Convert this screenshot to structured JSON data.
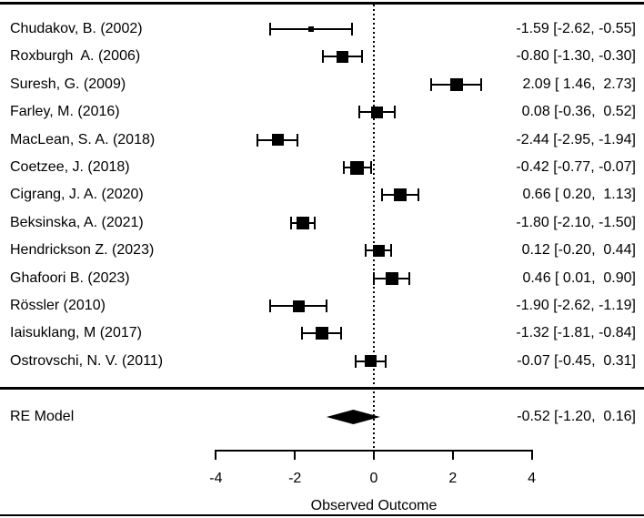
{
  "chart_data": {
    "type": "forest",
    "title": "",
    "xlabel": "Observed Outcome",
    "x_ticks": [
      -4,
      -2,
      0,
      2,
      4
    ],
    "xlim": [
      -4,
      4
    ],
    "reference_line": 0,
    "grid": false,
    "legend": false,
    "colors": {
      "foreground": "#000000",
      "background": "#ffffff"
    },
    "studies": [
      {
        "label": "Chudakov, B. (2002)",
        "estimate": -1.59,
        "ci_low": -2.62,
        "ci_high": -0.55,
        "display": "-1.59 [-2.62, -0.55]",
        "marker_size": 6
      },
      {
        "label": "Roxburgh  A. (2006)",
        "estimate": -0.8,
        "ci_low": -1.3,
        "ci_high": -0.3,
        "display": "-0.80 [-1.30, -0.30]",
        "marker_size": 13
      },
      {
        "label": "Suresh, G. (2009)",
        "estimate": 2.09,
        "ci_low": 1.46,
        "ci_high": 2.73,
        "display": "2.09 [ 1.46,  2.73]",
        "marker_size": 14
      },
      {
        "label": "Farley, M. (2016)",
        "estimate": 0.08,
        "ci_low": -0.36,
        "ci_high": 0.52,
        "display": "0.08 [-0.36,  0.52]",
        "marker_size": 13
      },
      {
        "label": "MacLean, S. A. (2018)",
        "estimate": -2.44,
        "ci_low": -2.95,
        "ci_high": -1.94,
        "display": "-2.44 [-2.95, -1.94]",
        "marker_size": 13
      },
      {
        "label": "Coetzee, J. (2018)",
        "estimate": -0.42,
        "ci_low": -0.77,
        "ci_high": -0.07,
        "display": "-0.42 [-0.77, -0.07]",
        "marker_size": 15
      },
      {
        "label": "Cigrang, J. A. (2020)",
        "estimate": 0.66,
        "ci_low": 0.2,
        "ci_high": 1.13,
        "display": "0.66 [ 0.20,  1.13]",
        "marker_size": 14
      },
      {
        "label": "Beksinska, A. (2021)",
        "estimate": -1.8,
        "ci_low": -2.1,
        "ci_high": -1.5,
        "display": "-1.80 [-2.10, -1.50]",
        "marker_size": 14
      },
      {
        "label": "Hendrickson Z. (2023)",
        "estimate": 0.12,
        "ci_low": -0.2,
        "ci_high": 0.44,
        "display": "0.12 [-0.20,  0.44]",
        "marker_size": 13
      },
      {
        "label": "Ghafoori B. (2023)",
        "estimate": 0.46,
        "ci_low": 0.01,
        "ci_high": 0.9,
        "display": "0.46 [ 0.01,  0.90]",
        "marker_size": 14
      },
      {
        "label": "Rössler (2010)",
        "estimate": -1.9,
        "ci_low": -2.62,
        "ci_high": -1.19,
        "display": "-1.90 [-2.62, -1.19]",
        "marker_size": 13
      },
      {
        "label": "Iaisuklang, M (2017)",
        "estimate": -1.32,
        "ci_low": -1.81,
        "ci_high": -0.84,
        "display": "-1.32 [-1.81, -0.84]",
        "marker_size": 14
      },
      {
        "label": "Ostrovschi, N. V. (2011)",
        "estimate": -0.07,
        "ci_low": -0.45,
        "ci_high": 0.31,
        "display": "-0.07 [-0.45,  0.31]",
        "marker_size": 13
      }
    ],
    "summary": {
      "label": "RE Model",
      "estimate": -0.52,
      "ci_low": -1.2,
      "ci_high": 0.16,
      "display": "-0.52 [-1.20,  0.16]"
    }
  }
}
